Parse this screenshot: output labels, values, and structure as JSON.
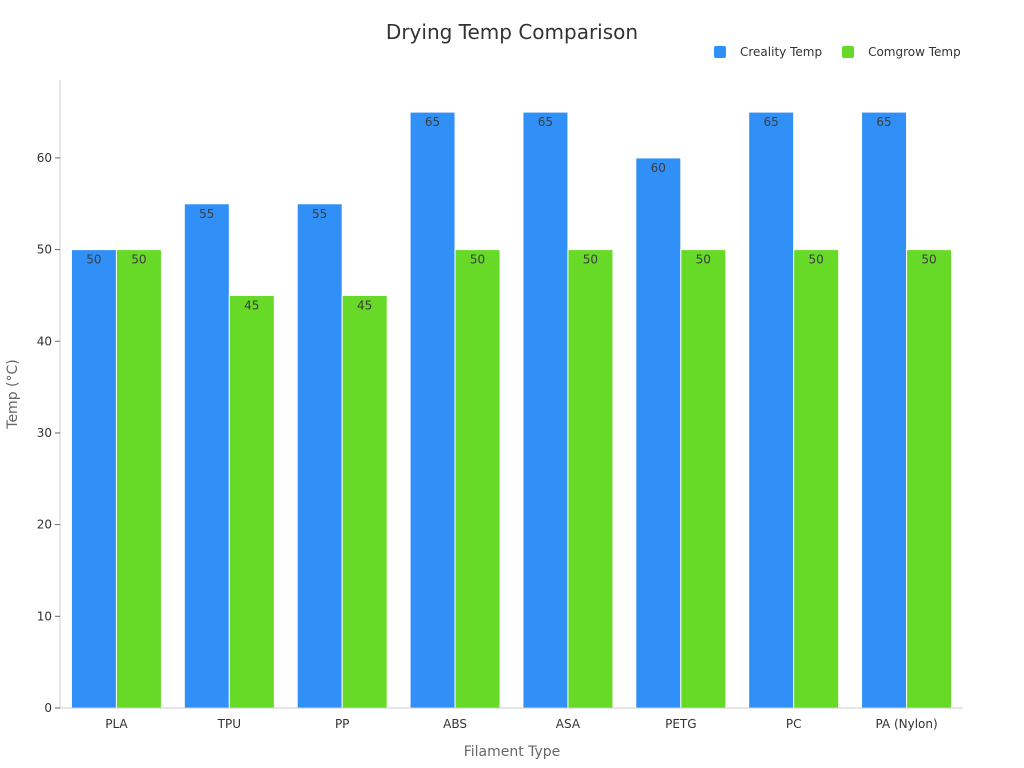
{
  "chart_data": {
    "type": "bar",
    "title": "Drying Temp Comparison",
    "xlabel": "Filament Type",
    "ylabel": "Temp (°C)",
    "categories": [
      "PLA",
      "TPU",
      "PP",
      "ABS",
      "ASA",
      "PETG",
      "PC",
      "PA (Nylon)"
    ],
    "series": [
      {
        "name": "Creality Temp",
        "color": "#3090f8",
        "values": [
          50,
          55,
          55,
          65,
          65,
          60,
          65,
          65
        ]
      },
      {
        "name": "Comgrow Temp",
        "color": "#66da26",
        "values": [
          50,
          45,
          45,
          50,
          50,
          50,
          50,
          50
        ]
      }
    ],
    "ylim": [
      0,
      68.5
    ],
    "yticks": [
      0,
      10,
      20,
      30,
      40,
      50,
      60
    ],
    "grid": false,
    "legend_position": "top-right",
    "data_labels": true
  }
}
